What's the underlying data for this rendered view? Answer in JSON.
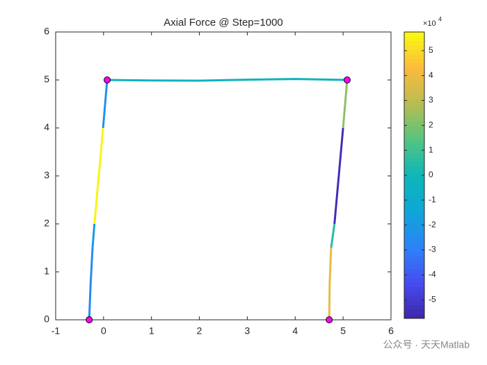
{
  "chart_data": {
    "type": "line",
    "title": "Axial Force @ Step=1000",
    "xlim": [
      -1,
      6
    ],
    "xticks": [
      -1,
      0,
      1,
      2,
      3,
      4,
      5,
      6
    ],
    "ylim": [
      0,
      6
    ],
    "yticks": [
      0,
      1,
      2,
      3,
      4,
      5,
      6
    ],
    "elements": [
      {
        "x": [
          -0.3,
          -0.27,
          -0.23
        ],
        "y": [
          0,
          0.75,
          1.5
        ],
        "force": -2.6
      },
      {
        "x": [
          -0.23,
          -0.19
        ],
        "y": [
          1.5,
          2
        ],
        "force": -2.0
      },
      {
        "x": [
          -0.19,
          -0.1,
          -0.01
        ],
        "y": [
          2,
          3,
          4
        ],
        "force": 5.6
      },
      {
        "x": [
          -0.01,
          0.075
        ],
        "y": [
          4,
          5
        ],
        "force": -2.3
      },
      {
        "x": [
          0.075,
          1,
          2,
          3,
          4,
          5.085
        ],
        "y": [
          5,
          4.99,
          4.985,
          5.005,
          5.02,
          5.0
        ],
        "force": -0.4
      },
      {
        "x": [
          4.71,
          4.72,
          4.75
        ],
        "y": [
          0,
          0.75,
          1.5
        ],
        "force": 3.9
      },
      {
        "x": [
          4.75,
          4.82
        ],
        "y": [
          1.5,
          2
        ],
        "force": 0.6
      },
      {
        "x": [
          4.82,
          4.91,
          5.0
        ],
        "y": [
          2,
          3,
          4
        ],
        "force": -5.4
      },
      {
        "x": [
          5.0,
          5.085
        ],
        "y": [
          4,
          5
        ],
        "force": 2.3
      }
    ],
    "nodes": {
      "x": [
        -0.3,
        0.075,
        5.085,
        4.71
      ],
      "y": [
        0,
        5,
        5,
        0
      ],
      "color": "#ff00ff"
    },
    "colorbar": {
      "lim": [
        -5.75,
        5.75
      ],
      "ticks": [
        -5,
        -4,
        -3,
        -2,
        -1,
        0,
        1,
        2,
        3,
        4,
        5
      ],
      "multiplier": {
        "base": "×10",
        "exponent": "4"
      },
      "colormap": "parula"
    },
    "annotation": "公众号 · 天天Matlab"
  }
}
